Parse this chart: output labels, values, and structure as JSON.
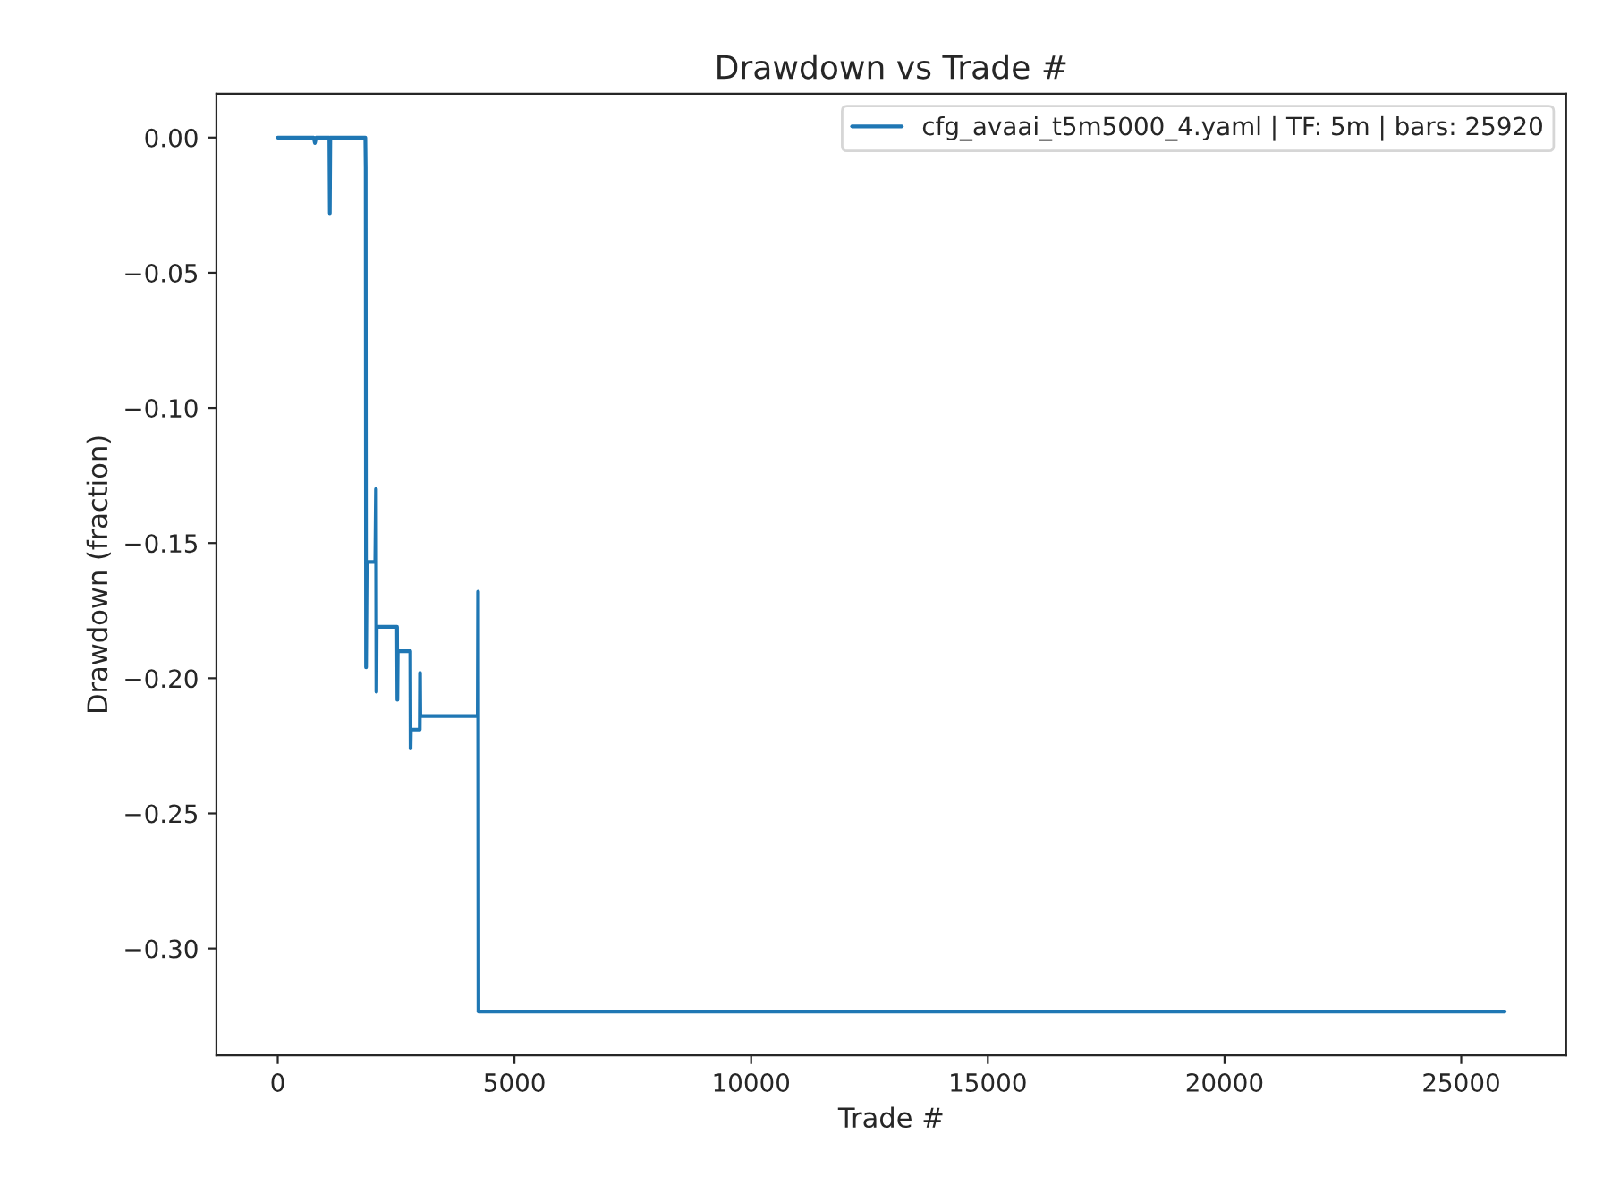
{
  "chart_data": {
    "type": "line",
    "title": "Drawdown vs Trade #",
    "xlabel": "Trade #",
    "ylabel": "Drawdown (fraction)",
    "series": [
      {
        "name": "cfg_avaai_t5m5000_4.yaml | TF: 5m | bars: 25920",
        "color": "#1f77b4",
        "x": [
          0,
          760,
          785,
          810,
          1090,
          1100,
          1110,
          1850,
          1857,
          1865,
          1880,
          2060,
          2075,
          2084,
          2090,
          2520,
          2527,
          2535,
          2800,
          2806,
          2812,
          3000,
          3006,
          3012,
          4225,
          4232,
          4240,
          25920
        ],
        "values": [
          0,
          0,
          -0.002,
          0,
          0,
          -0.028,
          0,
          0,
          -0.011,
          -0.196,
          -0.157,
          -0.157,
          -0.13,
          -0.205,
          -0.181,
          -0.181,
          -0.208,
          -0.19,
          -0.19,
          -0.226,
          -0.219,
          -0.219,
          -0.198,
          -0.214,
          -0.214,
          -0.168,
          -0.3233,
          -0.3233
        ]
      }
    ],
    "xlim": [
      -1296,
      27216
    ],
    "ylim": [
      -0.3395,
      0.0162
    ],
    "xticks": [
      0,
      5000,
      10000,
      15000,
      20000,
      25000
    ],
    "yticks": [
      {
        "value": 0,
        "label": "0.00"
      },
      {
        "value": -0.05,
        "label": "−0.05"
      },
      {
        "value": -0.1,
        "label": "−0.10"
      },
      {
        "value": -0.15,
        "label": "−0.15"
      },
      {
        "value": -0.2,
        "label": "−0.20"
      },
      {
        "value": -0.25,
        "label": "−0.25"
      },
      {
        "value": -0.3,
        "label": "−0.30"
      }
    ],
    "legend": "top right",
    "grid": false
  }
}
